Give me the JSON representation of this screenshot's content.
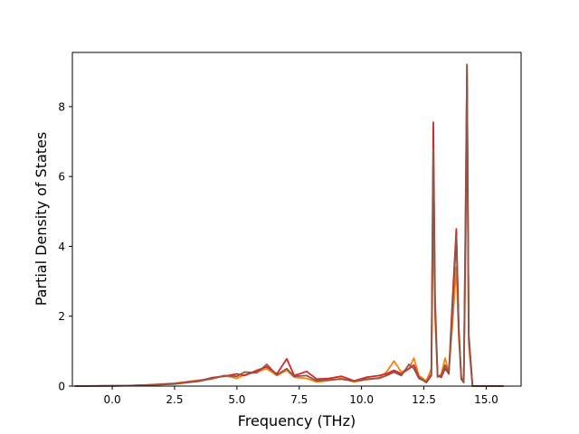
{
  "chart_data": {
    "type": "line",
    "title": "",
    "xlabel": "Frequency (THz)",
    "ylabel": "Partial Density of States",
    "xlim": [
      -1.6,
      16.4
    ],
    "ylim": [
      0,
      9.55
    ],
    "xticks": [
      0.0,
      2.5,
      5.0,
      7.5,
      10.0,
      12.5,
      15.0
    ],
    "xtick_labels": [
      "0.0",
      "2.5",
      "5.0",
      "7.5",
      "10.0",
      "12.5",
      "15.0"
    ],
    "yticks": [
      0,
      2,
      4,
      6,
      8
    ],
    "ytick_labels": [
      "0",
      "2",
      "4",
      "6",
      "8"
    ],
    "grid": false,
    "legend": "none",
    "series": [
      {
        "color": "#ff7f0e",
        "x": [
          -1.5,
          0.5,
          1.5,
          2.5,
          3.5,
          4.0,
          4.5,
          5.0,
          5.3,
          5.8,
          6.2,
          6.6,
          7.0,
          7.3,
          7.8,
          8.2,
          8.7,
          9.2,
          9.7,
          10.2,
          10.7,
          11.0,
          11.3,
          11.6,
          11.9,
          12.1,
          12.3,
          12.6,
          12.8,
          12.88,
          12.95,
          13.05,
          13.2,
          13.35,
          13.5,
          13.65,
          13.8,
          13.9,
          14.0,
          14.1,
          14.18,
          14.23,
          14.3,
          14.45,
          15.7
        ],
        "y": [
          0,
          0.01,
          0.04,
          0.08,
          0.17,
          0.2,
          0.3,
          0.22,
          0.32,
          0.4,
          0.5,
          0.3,
          0.45,
          0.25,
          0.22,
          0.12,
          0.16,
          0.22,
          0.12,
          0.18,
          0.24,
          0.4,
          0.72,
          0.4,
          0.5,
          0.8,
          0.3,
          0.15,
          0.5,
          4.9,
          2.0,
          0.25,
          0.35,
          0.8,
          0.4,
          1.8,
          3.4,
          1.4,
          0.25,
          0.15,
          4.0,
          8.9,
          1.2,
          0,
          0
        ]
      },
      {
        "color": "#d62728",
        "x": [
          -1.5,
          0.5,
          1.5,
          2.5,
          3.5,
          4.0,
          4.5,
          5.0,
          5.3,
          5.8,
          6.2,
          6.6,
          7.0,
          7.3,
          7.8,
          8.2,
          8.7,
          9.2,
          9.7,
          10.2,
          10.7,
          11.0,
          11.3,
          11.6,
          11.9,
          12.1,
          12.3,
          12.6,
          12.8,
          12.88,
          12.95,
          13.05,
          13.2,
          13.35,
          13.5,
          13.65,
          13.8,
          13.9,
          14.0,
          14.1,
          14.18,
          14.23,
          14.3,
          14.45,
          15.7
        ],
        "y": [
          0,
          0.01,
          0.03,
          0.07,
          0.15,
          0.24,
          0.28,
          0.35,
          0.3,
          0.45,
          0.55,
          0.35,
          0.78,
          0.3,
          0.42,
          0.2,
          0.22,
          0.28,
          0.15,
          0.25,
          0.3,
          0.35,
          0.45,
          0.35,
          0.5,
          0.6,
          0.25,
          0.1,
          0.3,
          7.55,
          2.5,
          0.3,
          0.25,
          0.5,
          0.35,
          2.5,
          4.5,
          1.7,
          0.2,
          0.1,
          5.5,
          9.2,
          1.5,
          0,
          0
        ]
      },
      {
        "color": "#8c564b",
        "x": [
          -1.5,
          0.5,
          1.5,
          2.5,
          3.5,
          4.0,
          4.5,
          5.0,
          5.3,
          5.8,
          6.2,
          6.6,
          7.0,
          7.3,
          7.8,
          8.2,
          8.7,
          9.2,
          9.7,
          10.2,
          10.7,
          11.0,
          11.3,
          11.6,
          11.9,
          12.1,
          12.3,
          12.6,
          12.8,
          12.88,
          12.95,
          13.05,
          13.2,
          13.35,
          13.5,
          13.65,
          13.8,
          13.9,
          14.0,
          14.1,
          14.18,
          14.23,
          14.3,
          14.45,
          15.7
        ],
        "y": [
          0,
          0.01,
          0.03,
          0.06,
          0.14,
          0.22,
          0.3,
          0.28,
          0.4,
          0.38,
          0.62,
          0.32,
          0.5,
          0.28,
          0.3,
          0.15,
          0.18,
          0.2,
          0.14,
          0.2,
          0.22,
          0.3,
          0.4,
          0.3,
          0.62,
          0.5,
          0.22,
          0.12,
          0.35,
          6.8,
          2.2,
          0.28,
          0.3,
          0.6,
          0.38,
          2.2,
          4.3,
          1.6,
          0.22,
          0.12,
          5.0,
          9.2,
          1.4,
          0,
          0
        ]
      }
    ]
  }
}
